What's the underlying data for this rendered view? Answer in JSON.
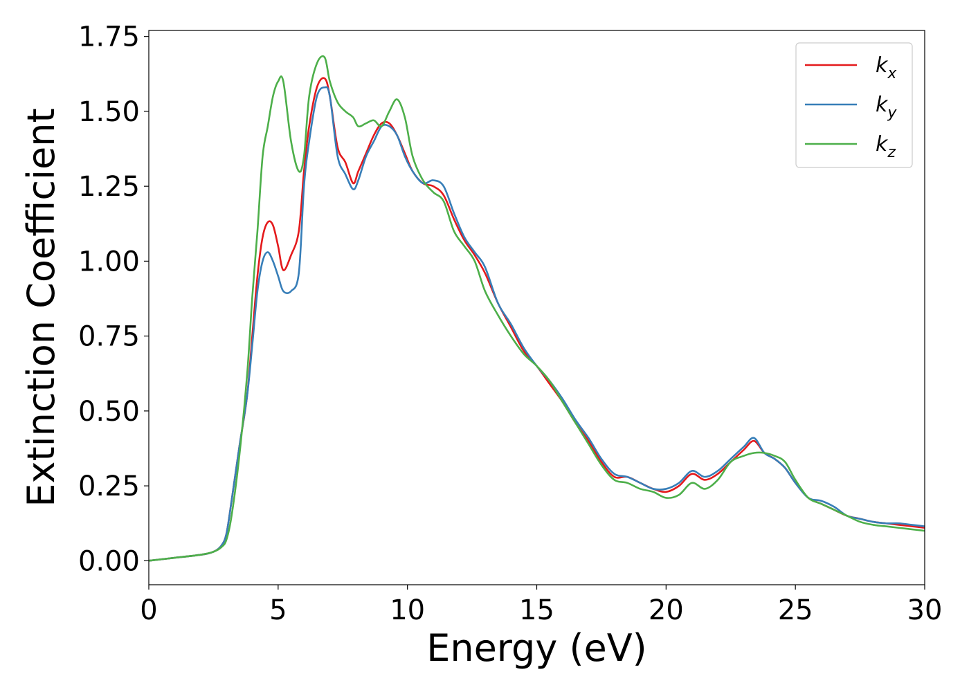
{
  "chart_data": {
    "type": "line",
    "xlabel": "Energy (eV)",
    "ylabel": "Extinction Coefficient",
    "xlim": [
      0,
      30
    ],
    "ylim": [
      -0.08,
      1.77
    ],
    "xticks": [
      0,
      5,
      10,
      15,
      20,
      25,
      30
    ],
    "xtick_labels": [
      "0",
      "5",
      "10",
      "15",
      "20",
      "25",
      "30"
    ],
    "yticks": [
      0.0,
      0.25,
      0.5,
      0.75,
      1.0,
      1.25,
      1.5,
      1.75
    ],
    "ytick_labels": [
      "0.00",
      "0.25",
      "0.50",
      "0.75",
      "1.00",
      "1.25",
      "1.50",
      "1.75"
    ],
    "grid": false,
    "legend_position": "top-right",
    "series": [
      {
        "name": "k_x",
        "label_base": "k",
        "label_sub": "x",
        "color": "#e41a1c",
        "x": [
          0,
          1,
          2,
          2.5,
          2.8,
          3.0,
          3.2,
          3.5,
          3.8,
          4.0,
          4.2,
          4.4,
          4.6,
          4.8,
          5.0,
          5.2,
          5.5,
          5.8,
          6.0,
          6.2,
          6.5,
          6.8,
          7.0,
          7.3,
          7.6,
          7.9,
          8.1,
          8.4,
          8.7,
          9.0,
          9.3,
          9.6,
          9.9,
          10.2,
          10.6,
          11.0,
          11.4,
          11.8,
          12.2,
          12.6,
          13.0,
          13.5,
          14.0,
          14.5,
          15.0,
          15.5,
          16.0,
          16.5,
          17.0,
          17.5,
          18.0,
          18.5,
          19.0,
          19.5,
          20.0,
          20.5,
          21.0,
          21.5,
          22.0,
          22.5,
          23.0,
          23.4,
          23.8,
          24.2,
          24.6,
          25.0,
          25.5,
          26.0,
          26.5,
          27.0,
          27.5,
          28.0,
          28.5,
          29.0,
          29.5,
          30.0
        ],
        "y": [
          0.0,
          0.01,
          0.02,
          0.03,
          0.05,
          0.09,
          0.2,
          0.38,
          0.55,
          0.75,
          0.95,
          1.08,
          1.13,
          1.12,
          1.05,
          0.97,
          1.02,
          1.1,
          1.3,
          1.45,
          1.58,
          1.61,
          1.55,
          1.38,
          1.33,
          1.26,
          1.3,
          1.36,
          1.42,
          1.46,
          1.46,
          1.42,
          1.36,
          1.3,
          1.26,
          1.25,
          1.22,
          1.14,
          1.07,
          1.02,
          0.96,
          0.86,
          0.78,
          0.7,
          0.65,
          0.59,
          0.53,
          0.46,
          0.4,
          0.33,
          0.28,
          0.28,
          0.26,
          0.24,
          0.23,
          0.25,
          0.29,
          0.27,
          0.29,
          0.33,
          0.37,
          0.4,
          0.36,
          0.34,
          0.31,
          0.26,
          0.21,
          0.19,
          0.17,
          0.15,
          0.14,
          0.13,
          0.125,
          0.12,
          0.115,
          0.11
        ]
      },
      {
        "name": "k_y",
        "label_base": "k",
        "label_sub": "y",
        "color": "#377eb8",
        "x": [
          0,
          1,
          2,
          2.5,
          2.8,
          3.0,
          3.2,
          3.5,
          3.8,
          4.0,
          4.2,
          4.4,
          4.6,
          4.8,
          5.0,
          5.2,
          5.5,
          5.8,
          6.0,
          6.2,
          6.5,
          6.8,
          7.0,
          7.3,
          7.6,
          7.9,
          8.1,
          8.4,
          8.7,
          9.0,
          9.3,
          9.6,
          9.9,
          10.2,
          10.6,
          11.0,
          11.4,
          11.8,
          12.2,
          12.6,
          13.0,
          13.5,
          14.0,
          14.5,
          15.0,
          15.5,
          16.0,
          16.5,
          17.0,
          17.5,
          18.0,
          18.5,
          19.0,
          19.5,
          20.0,
          20.5,
          21.0,
          21.5,
          22.0,
          22.5,
          23.0,
          23.4,
          23.8,
          24.2,
          24.6,
          25.0,
          25.5,
          26.0,
          26.5,
          27.0,
          27.5,
          28.0,
          28.5,
          29.0,
          29.5,
          30.0
        ],
        "y": [
          0.0,
          0.01,
          0.02,
          0.03,
          0.05,
          0.09,
          0.2,
          0.38,
          0.55,
          0.72,
          0.9,
          1.0,
          1.03,
          1.0,
          0.95,
          0.9,
          0.9,
          0.96,
          1.25,
          1.4,
          1.55,
          1.58,
          1.55,
          1.35,
          1.29,
          1.24,
          1.27,
          1.35,
          1.4,
          1.45,
          1.45,
          1.42,
          1.35,
          1.3,
          1.26,
          1.27,
          1.25,
          1.16,
          1.08,
          1.03,
          0.98,
          0.86,
          0.79,
          0.71,
          0.65,
          0.6,
          0.54,
          0.47,
          0.41,
          0.34,
          0.29,
          0.28,
          0.26,
          0.24,
          0.24,
          0.26,
          0.3,
          0.28,
          0.3,
          0.34,
          0.38,
          0.41,
          0.36,
          0.34,
          0.31,
          0.26,
          0.21,
          0.2,
          0.18,
          0.15,
          0.14,
          0.13,
          0.125,
          0.125,
          0.12,
          0.115
        ]
      },
      {
        "name": "k_z",
        "label_base": "k",
        "label_sub": "z",
        "color": "#4daf4a",
        "x": [
          0,
          1,
          2,
          2.5,
          2.8,
          3.0,
          3.2,
          3.5,
          3.8,
          4.0,
          4.2,
          4.4,
          4.6,
          4.8,
          5.0,
          5.2,
          5.5,
          5.8,
          6.0,
          6.2,
          6.5,
          6.8,
          7.0,
          7.3,
          7.6,
          7.9,
          8.1,
          8.4,
          8.7,
          9.0,
          9.3,
          9.6,
          9.9,
          10.2,
          10.6,
          11.0,
          11.4,
          11.8,
          12.2,
          12.6,
          13.0,
          13.5,
          14.0,
          14.5,
          15.0,
          15.5,
          16.0,
          16.5,
          17.0,
          17.5,
          18.0,
          18.5,
          19.0,
          19.5,
          20.0,
          20.5,
          21.0,
          21.5,
          22.0,
          22.5,
          23.0,
          23.4,
          23.8,
          24.2,
          24.6,
          25.0,
          25.5,
          26.0,
          26.5,
          27.0,
          27.5,
          28.0,
          28.5,
          29.0,
          29.5,
          30.0
        ],
        "y": [
          0.0,
          0.01,
          0.02,
          0.03,
          0.045,
          0.07,
          0.15,
          0.35,
          0.62,
          0.88,
          1.1,
          1.35,
          1.45,
          1.55,
          1.6,
          1.6,
          1.4,
          1.3,
          1.35,
          1.55,
          1.66,
          1.68,
          1.6,
          1.53,
          1.5,
          1.48,
          1.45,
          1.46,
          1.47,
          1.45,
          1.5,
          1.54,
          1.48,
          1.35,
          1.27,
          1.23,
          1.2,
          1.1,
          1.05,
          1.0,
          0.9,
          0.82,
          0.75,
          0.69,
          0.65,
          0.6,
          0.53,
          0.46,
          0.39,
          0.32,
          0.27,
          0.26,
          0.24,
          0.23,
          0.21,
          0.22,
          0.26,
          0.24,
          0.27,
          0.33,
          0.35,
          0.36,
          0.36,
          0.35,
          0.33,
          0.27,
          0.21,
          0.19,
          0.17,
          0.15,
          0.13,
          0.12,
          0.115,
          0.11,
          0.105,
          0.1
        ]
      }
    ]
  }
}
